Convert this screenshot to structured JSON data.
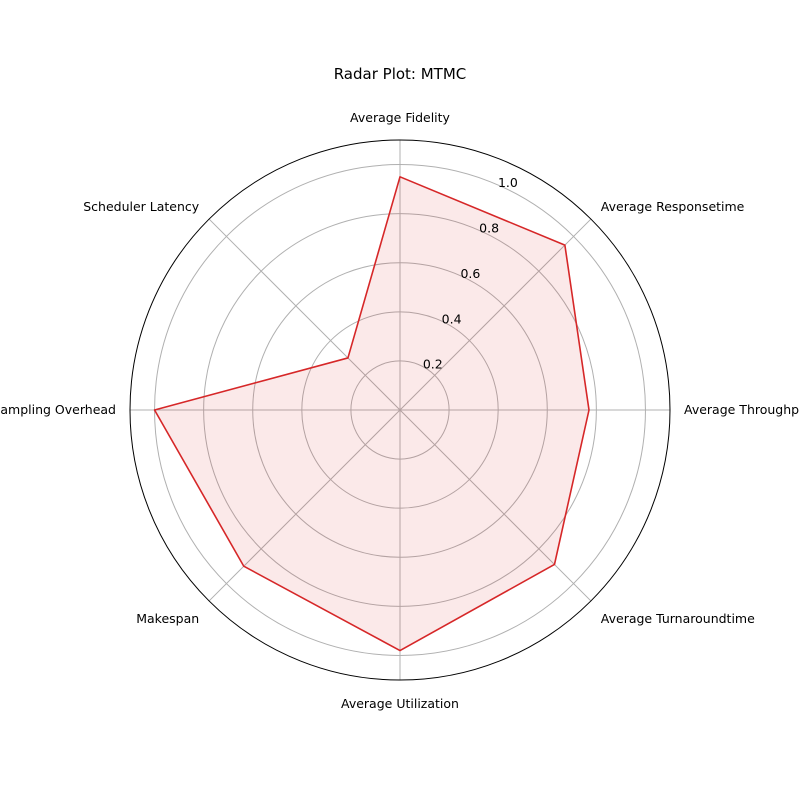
{
  "chart_data": {
    "type": "radar",
    "title": "Radar Plot: MTMC",
    "categories": [
      "Average Fidelity",
      "Average Responsetime",
      "Average Throughput",
      "Average Turnaroundtime",
      "Average Utilization",
      "Makespan",
      "Sampling Overhead",
      "Scheduler Latency"
    ],
    "series": [
      {
        "values": [
          0.95,
          0.95,
          0.77,
          0.89,
          0.98,
          0.9,
          1.0,
          0.3
        ]
      }
    ],
    "radial_ticks": [
      0.2,
      0.4,
      0.6,
      0.8,
      1.0
    ],
    "radial_tick_labels": [
      "0.2",
      "0.4",
      "0.6",
      "0.8",
      "1.0"
    ],
    "rlim": [
      0,
      1.1
    ],
    "grid": true,
    "colors": {
      "line": "#d62728",
      "fill": "#d62728",
      "grid": "#b0b0b0",
      "frame": "#000000"
    }
  }
}
